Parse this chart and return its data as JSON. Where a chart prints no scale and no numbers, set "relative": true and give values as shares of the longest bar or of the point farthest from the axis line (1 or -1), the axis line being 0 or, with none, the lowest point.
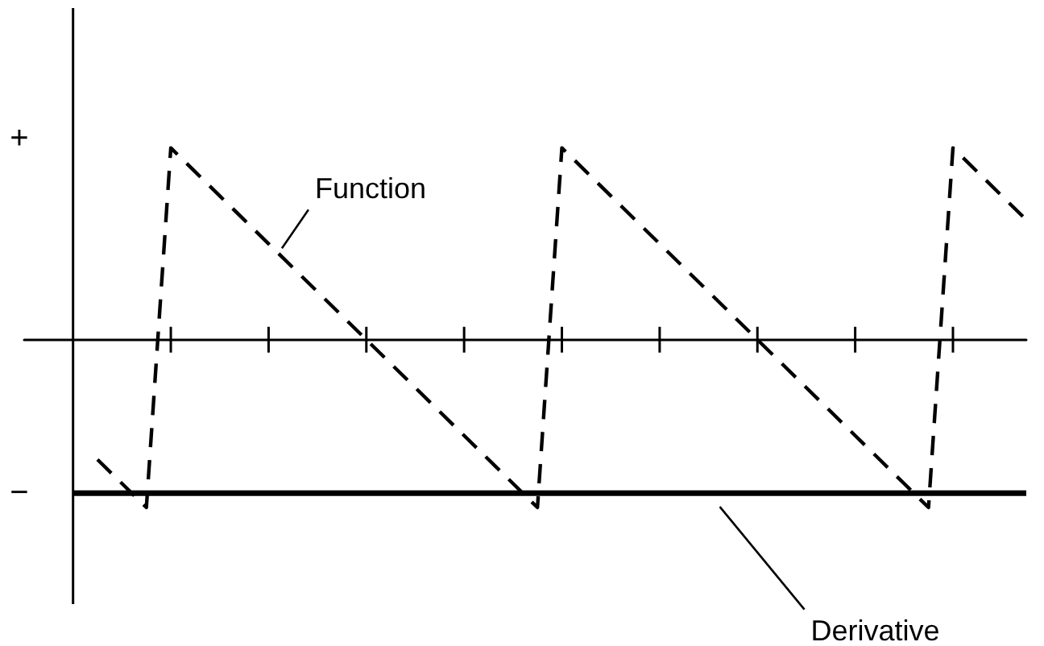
{
  "chart_data": {
    "type": "line",
    "relative": true,
    "categories": [
      null,
      null,
      null,
      null,
      null,
      null,
      null,
      null,
      null,
      null,
      null,
      null,
      null,
      null,
      null,
      null,
      null,
      null,
      null,
      null,
      null,
      null,
      null,
      null,
      null,
      null,
      null,
      null,
      null,
      null,
      null,
      null,
      null,
      null,
      null,
      null,
      null,
      null,
      null,
      null,
      null,
      null
    ],
    "annotations": [
      "+",
      "−"
    ],
    "grid": false,
    "legend": false,
    "marker": "none",
    "series": [
      {
        "name": "Function",
        "color": "#000000",
        "line_style": "dashed",
        "values": [
          null,
          null,
          null,
          -0.625,
          -0.75,
          -0.875,
          1,
          0.875,
          0.75,
          0.625,
          0.5,
          0.375,
          0.25,
          0.125,
          0,
          -0.125,
          -0.25,
          -0.375,
          -0.5,
          -0.625,
          -0.75,
          -0.875,
          1,
          0.875,
          0.75,
          0.625,
          0.5,
          0.375,
          0.25,
          0.125,
          0,
          -0.125,
          -0.25,
          -0.375,
          -0.5,
          -0.625,
          -0.75,
          -0.875,
          1,
          0.875,
          0.75,
          0.625
        ]
      },
      {
        "name": "Derivative",
        "color": "#000000",
        "line_style": "solid",
        "values": [
          null,
          null,
          -0.8,
          -0.8,
          -0.8,
          -0.8,
          -0.8,
          -0.8,
          -0.8,
          -0.8,
          -0.8,
          -0.8,
          -0.8,
          -0.8,
          -0.8,
          -0.8,
          -0.8,
          -0.8,
          -0.8,
          -0.8,
          -0.8,
          -0.8,
          -0.8,
          -0.8,
          -0.8,
          -0.8,
          -0.8,
          -0.8,
          -0.8,
          -0.8,
          -0.8,
          -0.8,
          -0.8,
          -0.8,
          -0.8,
          -0.8,
          -0.8,
          -0.8,
          -0.8,
          -0.8,
          -0.8,
          -0.8
        ]
      }
    ]
  }
}
